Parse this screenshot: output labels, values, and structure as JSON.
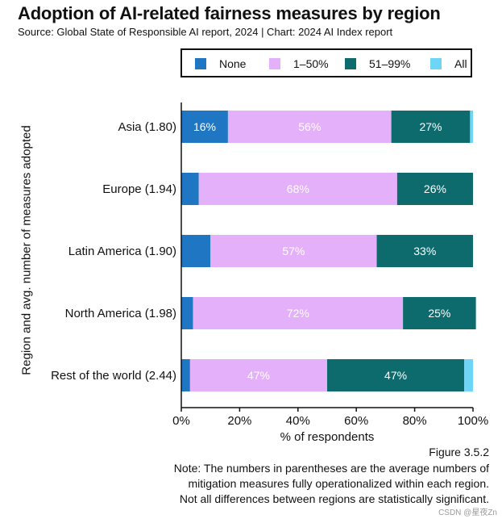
{
  "chart_data": {
    "type": "bar",
    "orientation": "horizontal",
    "stacked": true,
    "title": "Adoption of AI-related fairness measures by region",
    "subtitle": "Source: Global State of Responsible AI report, 2024 | Chart: 2024 AI Index report",
    "xlabel": "% of respondents",
    "ylabel": "Region and avg. number of measures adopted",
    "xlim": [
      0,
      100
    ],
    "xticks": [
      {
        "value": 0,
        "label": "0%"
      },
      {
        "value": 20,
        "label": "20%"
      },
      {
        "value": 40,
        "label": "40%"
      },
      {
        "value": 60,
        "label": "60%"
      },
      {
        "value": 80,
        "label": "80%"
      },
      {
        "value": 100,
        "label": "100%"
      }
    ],
    "legend_position": "top",
    "categories": [
      "Asia (1.80)",
      "Europe (1.94)",
      "Latin America (1.90)",
      "North America (1.98)",
      "Rest of the world (2.44)"
    ],
    "series": [
      {
        "name": "None",
        "color": "#1f77c4",
        "values": [
          16,
          6,
          10,
          4,
          3
        ],
        "labels": [
          "16%",
          "",
          "",
          "",
          ""
        ]
      },
      {
        "name": "1–50%",
        "color": "#e5b0fa",
        "values": [
          56,
          68,
          57,
          72,
          47
        ],
        "labels": [
          "56%",
          "68%",
          "57%",
          "72%",
          "47%"
        ]
      },
      {
        "name": "51–99%",
        "color": "#0d6b6e",
        "values": [
          27,
          26,
          33,
          25,
          47
        ],
        "labels": [
          "27%",
          "26%",
          "33%",
          "25%",
          "47%"
        ]
      },
      {
        "name": "All",
        "color": "#6fd5f7",
        "values": [
          1,
          0,
          0,
          0,
          3
        ],
        "labels": [
          "",
          "",
          "",
          "",
          ""
        ]
      }
    ]
  },
  "figure_number": "Figure 3.5.2",
  "note_lines": [
    "Note: The numbers in parentheses are the average numbers of",
    "mitigation measures fully operationalized within each region.",
    "Not all differences between regions are statistically significant."
  ],
  "watermark": "CSDN @星夜Zn"
}
